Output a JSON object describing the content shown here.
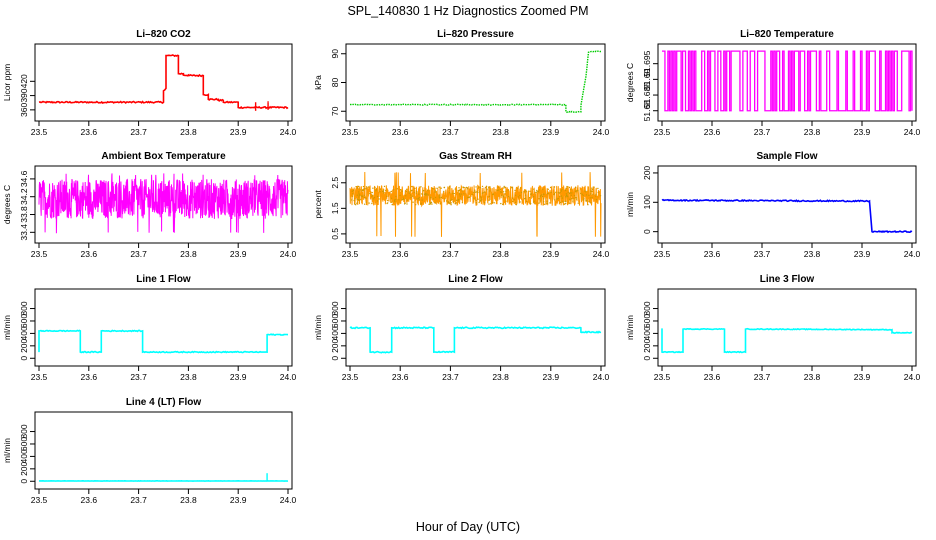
{
  "figure": {
    "title": "SPL_140830  1 Hz Diagnostics Zoomed PM",
    "xlabel": "Hour of Day (UTC)"
  },
  "chart_data": [
    {
      "type": "line",
      "title": "Li–820 CO2",
      "ylabel": "Licor ppm",
      "color": "#ff0000",
      "xlim": [
        23.5,
        24.0
      ],
      "ylim": [
        345,
        490
      ],
      "xticks": [
        23.5,
        23.6,
        23.7,
        23.8,
        23.9,
        24.0
      ],
      "yticks": [
        360,
        390,
        420
      ],
      "x": [
        23.5,
        23.75,
        23.75,
        23.755,
        23.755,
        23.78,
        23.78,
        23.79,
        23.79,
        23.8,
        23.8,
        23.83,
        23.83,
        23.84,
        23.84,
        23.86,
        23.86,
        23.87,
        23.87,
        23.9,
        23.9,
        24.0
      ],
      "y": [
        376,
        376,
        400,
        405,
        474,
        474,
        436,
        436,
        433,
        433,
        432,
        432,
        392,
        392,
        382,
        382,
        380,
        380,
        376,
        376,
        365,
        365
      ],
      "noise": 1.5,
      "spikes": [
        {
          "x": 23.96,
          "y": 378
        },
        {
          "x": 23.96,
          "y": 360
        },
        {
          "x": 23.935,
          "y": 358
        }
      ]
    },
    {
      "type": "line",
      "title": "Li–820 Pressure",
      "ylabel": "kPa",
      "color": "#00cc00",
      "xlim": [
        23.5,
        24.0
      ],
      "ylim": [
        68,
        92
      ],
      "xticks": [
        23.5,
        23.6,
        23.7,
        23.8,
        23.9,
        24.0
      ],
      "yticks": [
        70,
        80,
        90
      ],
      "x": [
        23.5,
        23.93,
        23.93,
        23.96,
        23.96,
        23.97,
        23.975,
        23.98,
        24.0
      ],
      "y": [
        72.3,
        72.3,
        69.8,
        69.8,
        72,
        82,
        90.5,
        90.8,
        90.8
      ],
      "noise": 0.15,
      "dotted": true
    },
    {
      "type": "line",
      "title": "Li–820 Temperature",
      "ylabel": "degrees C",
      "color": "#ff00ff",
      "xlim": [
        23.5,
        24.0
      ],
      "ylim": [
        51.678,
        51.7
      ],
      "xticks": [
        23.5,
        23.6,
        23.7,
        23.8,
        23.9,
        24.0
      ],
      "yticks": [
        51.68,
        51.685,
        51.69,
        51.695
      ],
      "levels": [
        51.68,
        51.699
      ],
      "flicker": true,
      "switches": 170
    },
    {
      "type": "line",
      "title": "Ambient Box Temperature",
      "ylabel": "degrees C",
      "color": "#ff00ff",
      "xlim": [
        23.5,
        24.0
      ],
      "ylim": [
        33.25,
        34.8
      ],
      "xticks": [
        23.5,
        23.6,
        23.7,
        23.8,
        23.9,
        24.0
      ],
      "yticks": [
        33.4,
        33.8,
        34.2,
        34.6
      ],
      "band": [
        33.7,
        34.6
      ],
      "outliers": [
        33.4,
        34.7
      ],
      "noise": 0.45,
      "dense": true
    },
    {
      "type": "line",
      "title": "Gas Stream RH",
      "ylabel": "percent",
      "color": "#ff9900",
      "dots_color": "#cc9900",
      "xlim": [
        23.5,
        24.0
      ],
      "ylim": [
        0.3,
        3.0
      ],
      "xticks": [
        23.5,
        23.6,
        23.7,
        23.8,
        23.9,
        24.0
      ],
      "yticks": [
        0.5,
        1.5,
        2.5
      ],
      "band": [
        1.6,
        2.4
      ],
      "outliers": [
        0.4,
        2.9
      ],
      "noise": 0.3,
      "dense": true
    },
    {
      "type": "line",
      "title": "Sample Flow",
      "ylabel": "ml/min",
      "color": "#0000ff",
      "xlim": [
        23.5,
        24.0
      ],
      "ylim": [
        -25,
        210
      ],
      "xticks": [
        23.5,
        23.6,
        23.7,
        23.8,
        23.9,
        24.0
      ],
      "yticks": [
        0,
        100,
        200
      ],
      "x": [
        23.5,
        23.915,
        23.915,
        23.92,
        23.92,
        24.0
      ],
      "y": [
        107,
        104,
        103,
        0,
        0,
        0
      ],
      "noise": 2
    },
    {
      "type": "line",
      "title": "Line 1 Flow",
      "ylabel": "ml/min",
      "color": "#00ffff",
      "xlim": [
        23.5,
        24.0
      ],
      "ylim": [
        -60,
        1050
      ],
      "xticks": [
        23.5,
        23.6,
        23.7,
        23.8,
        23.9,
        24.0
      ],
      "yticks": [
        0,
        200,
        400,
        600,
        800
      ],
      "x": [
        23.5,
        23.5,
        23.583,
        23.583,
        23.625,
        23.625,
        23.708,
        23.708,
        23.958,
        23.958,
        24.0
      ],
      "y": [
        100,
        440,
        440,
        100,
        100,
        440,
        440,
        100,
        100,
        380,
        380
      ],
      "noise": 8
    },
    {
      "type": "line",
      "title": "Line 2 Flow",
      "ylabel": "ml/min",
      "color": "#00ffff",
      "xlim": [
        23.5,
        24.0
      ],
      "ylim": [
        -60,
        1050
      ],
      "xticks": [
        23.5,
        23.6,
        23.7,
        23.8,
        23.9,
        24.0
      ],
      "yticks": [
        0,
        200,
        400,
        600,
        800
      ],
      "x": [
        23.5,
        23.54,
        23.54,
        23.583,
        23.583,
        23.667,
        23.667,
        23.708,
        23.708,
        23.96,
        23.96,
        24.0
      ],
      "y": [
        490,
        490,
        100,
        100,
        490,
        490,
        100,
        100,
        490,
        490,
        420,
        420
      ],
      "noise": 10
    },
    {
      "type": "line",
      "title": "Line 3 Flow",
      "ylabel": "ml/min",
      "color": "#00ffff",
      "xlim": [
        23.5,
        24.0
      ],
      "ylim": [
        -60,
        1050
      ],
      "xticks": [
        23.5,
        23.6,
        23.7,
        23.8,
        23.9,
        24.0
      ],
      "yticks": [
        0,
        200,
        400,
        600,
        800
      ],
      "x": [
        23.5,
        23.5,
        23.542,
        23.542,
        23.625,
        23.625,
        23.667,
        23.667,
        23.96,
        23.96,
        24.0
      ],
      "y": [
        480,
        100,
        100,
        470,
        470,
        100,
        100,
        470,
        460,
        410,
        410
      ],
      "noise": 6
    },
    {
      "type": "line",
      "title": "Line 4 (LT) Flow",
      "ylabel": "ml/min",
      "color": "#00ffff",
      "xlim": [
        23.5,
        24.0
      ],
      "ylim": [
        -60,
        1050
      ],
      "xticks": [
        23.5,
        23.6,
        23.7,
        23.8,
        23.9,
        24.0
      ],
      "yticks": [
        0,
        200,
        400,
        600,
        800
      ],
      "x": [
        23.5,
        24.0
      ],
      "y": [
        5,
        5
      ],
      "noise": 2,
      "spikes": [
        {
          "x": 23.958,
          "y": 130
        }
      ]
    }
  ]
}
